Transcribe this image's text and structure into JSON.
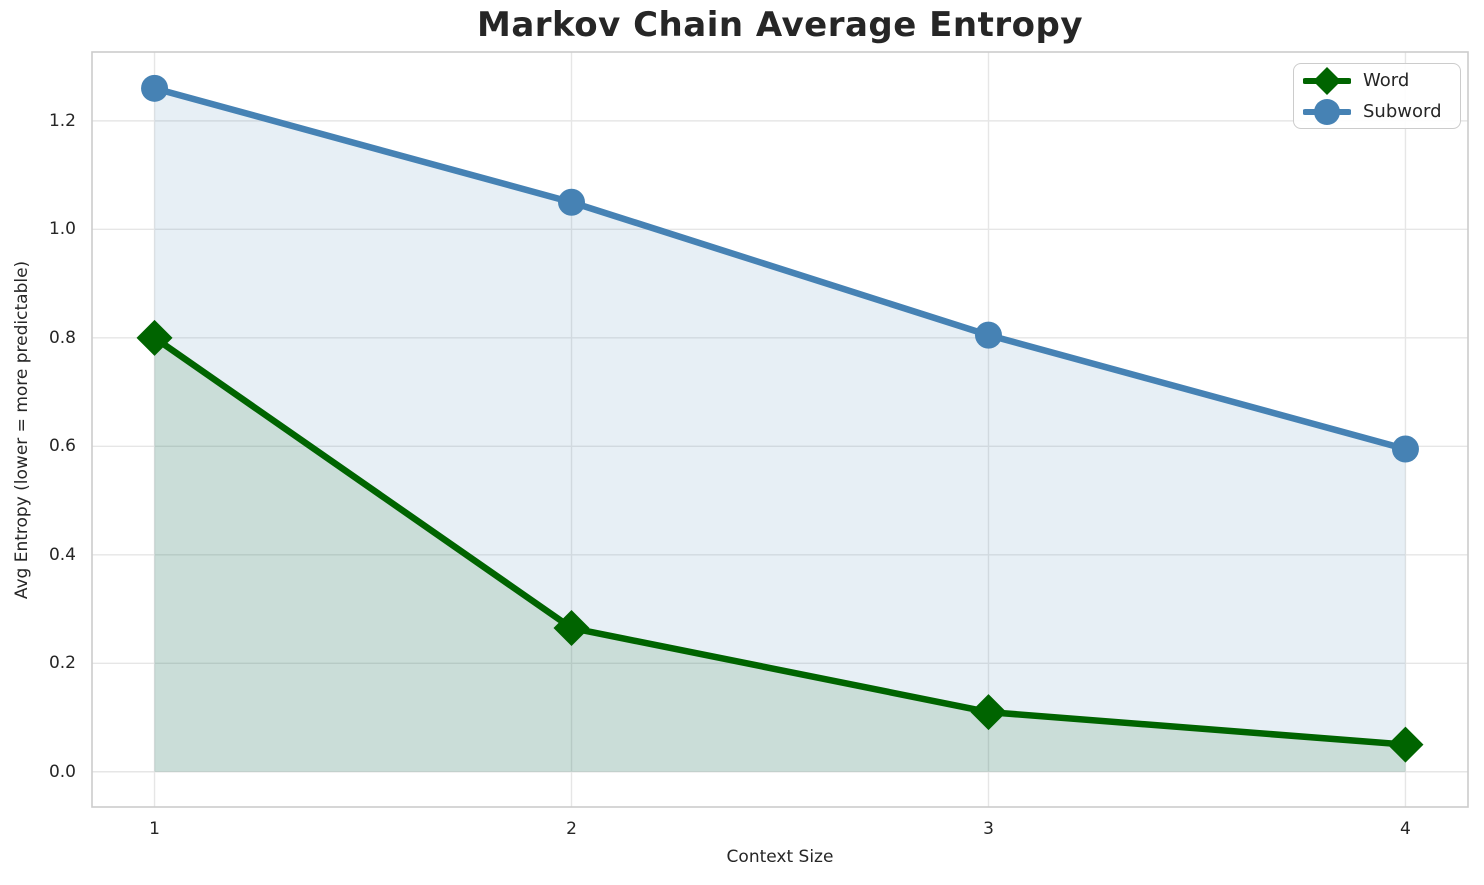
{
  "chart_data": {
    "type": "line",
    "title": "Markov Chain Average Entropy",
    "xlabel": "Context Size",
    "ylabel": "Avg Entropy (lower = more predictable)",
    "x": [
      1,
      2,
      3,
      4
    ],
    "series": [
      {
        "name": "Word",
        "values": [
          0.8,
          0.265,
          0.11,
          0.05
        ],
        "color": "#006400",
        "marker": "diamond",
        "fill_to_zero": true
      },
      {
        "name": "Subword",
        "values": [
          1.26,
          1.05,
          0.805,
          0.595
        ],
        "color": "#4682b4",
        "marker": "circle",
        "fill_to_zero": true
      }
    ],
    "fill_opacity": 0.13,
    "fill_baseline": 0,
    "xlim": [
      0.85,
      4.15
    ],
    "ylim": [
      -0.065,
      1.327
    ],
    "xticks": {
      "values": [
        1,
        2,
        3,
        4
      ],
      "labels": [
        "1",
        "2",
        "3",
        "4"
      ]
    },
    "yticks": {
      "values": [
        0.0,
        0.2,
        0.4,
        0.6,
        0.8,
        1.0,
        1.2
      ],
      "labels": [
        "0.0",
        "0.2",
        "0.4",
        "0.6",
        "0.8",
        "1.0",
        "1.2"
      ]
    },
    "grid": true,
    "legend": {
      "position": "upper right",
      "entries": [
        "Word",
        "Subword"
      ]
    }
  },
  "style": {
    "grid_color": "#e6e6e6",
    "spine_color": "#cccccc",
    "text_color": "#262626",
    "background": "#ffffff"
  }
}
